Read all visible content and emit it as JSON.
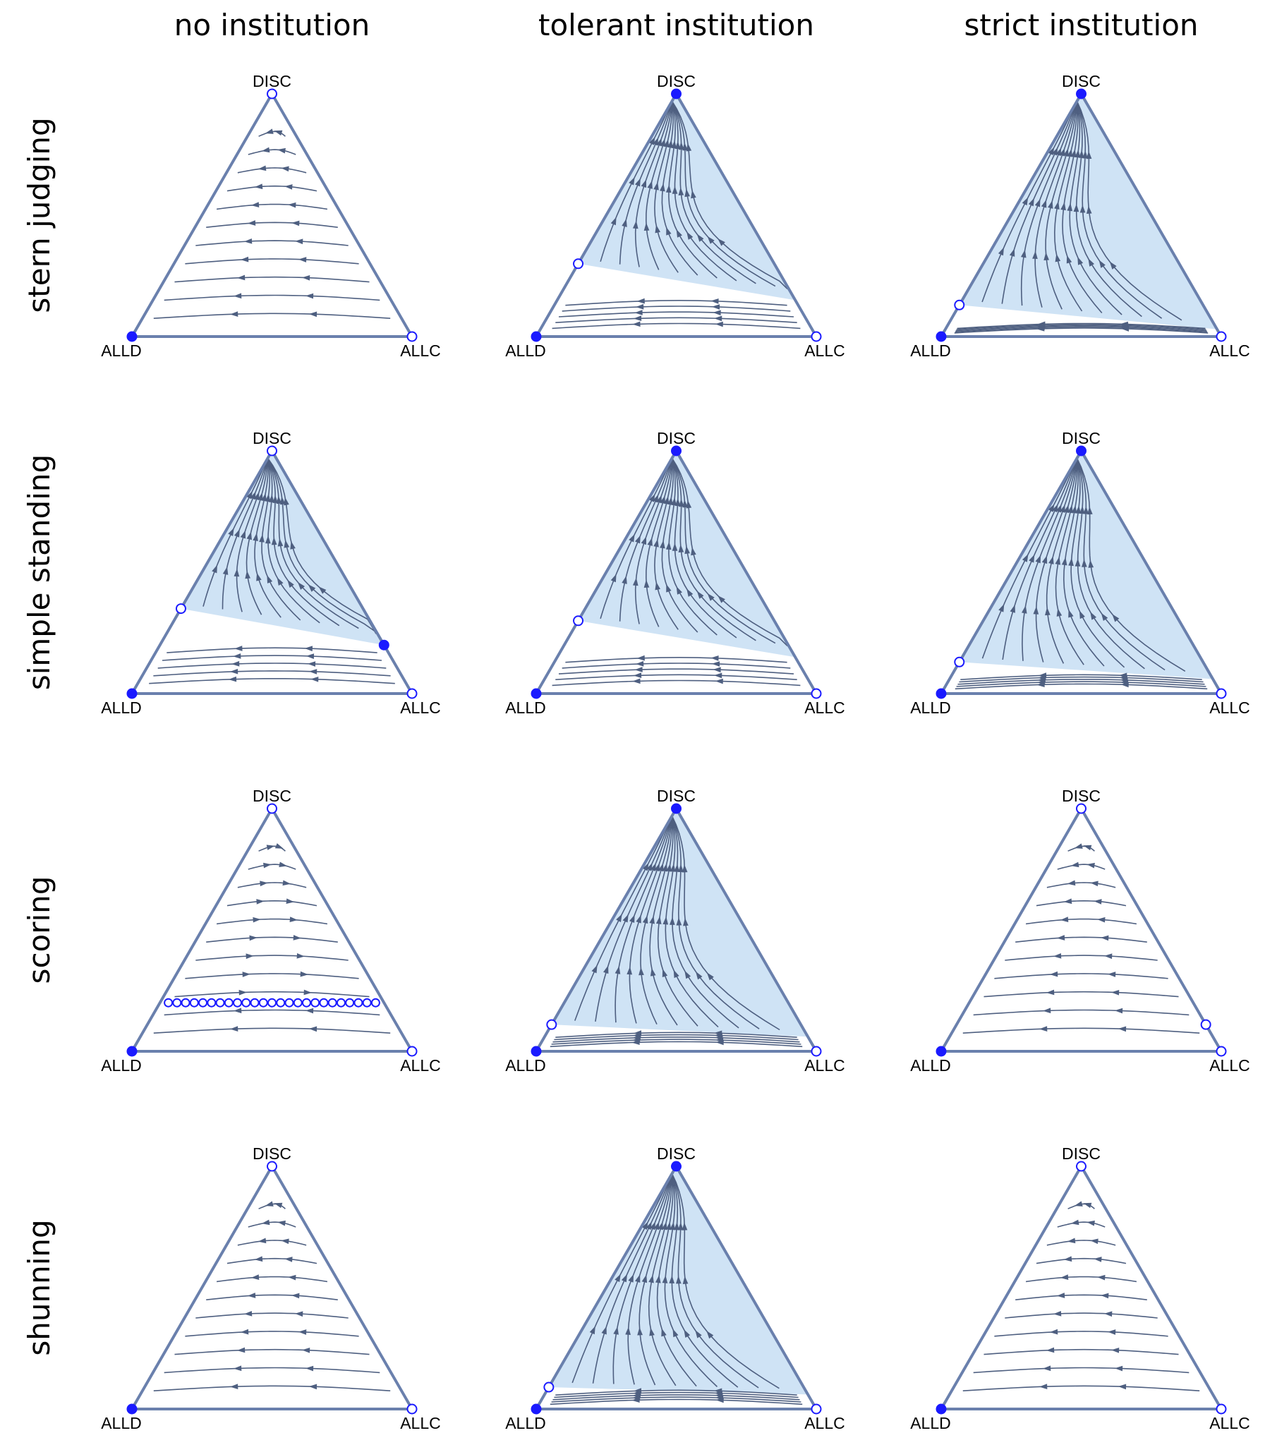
{
  "columns": [
    "no institution",
    "tolerant institution",
    "strict institution"
  ],
  "rows": [
    "stern judging",
    "simple standing",
    "scoring",
    "shunning"
  ],
  "vertex_labels": {
    "top": "DISC",
    "left": "ALLD",
    "right": "ALLC"
  },
  "colors": {
    "edge": "#6a80ad",
    "flow": "#4e5f80",
    "basin": "#cfe3f5",
    "fixed_point": "#1a1aff"
  },
  "panels": [
    {
      "row": "stern judging",
      "column": "no institution",
      "flow": "toward-alld",
      "basin": null,
      "points": [
        {
          "s": 1,
          "c": 0,
          "stable": false
        },
        {
          "s": 0,
          "c": 0,
          "stable": true
        },
        {
          "s": 0,
          "c": 1,
          "stable": false
        }
      ]
    },
    {
      "row": "stern judging",
      "column": "tolerant institution",
      "flow": "bistable",
      "basin": {
        "left": 0.3,
        "right": 0.15
      },
      "points": [
        {
          "s": 1,
          "c": 0,
          "stable": true
        },
        {
          "s": 0,
          "c": 0,
          "stable": true
        },
        {
          "s": 0,
          "c": 1,
          "stable": false
        },
        {
          "s": 0.3,
          "c": 0,
          "stable": false
        }
      ]
    },
    {
      "row": "stern judging",
      "column": "strict institution",
      "flow": "bistable",
      "basin": {
        "left": 0.13,
        "right": 0.03
      },
      "points": [
        {
          "s": 1,
          "c": 0,
          "stable": true
        },
        {
          "s": 0,
          "c": 0,
          "stable": true
        },
        {
          "s": 0,
          "c": 1,
          "stable": false
        },
        {
          "s": 0.13,
          "c": 0,
          "stable": false
        }
      ]
    },
    {
      "row": "simple standing",
      "column": "no institution",
      "flow": "bistable",
      "basin": {
        "left": 0.35,
        "right": 0.2
      },
      "points": [
        {
          "s": 1,
          "c": 0,
          "stable": false
        },
        {
          "s": 0,
          "c": 0,
          "stable": true
        },
        {
          "s": 0,
          "c": 1,
          "stable": false
        },
        {
          "s": 0.35,
          "c": 0,
          "stable": false
        },
        {
          "s": 0.2,
          "c": 0.8,
          "stable": true
        }
      ]
    },
    {
      "row": "simple standing",
      "column": "tolerant institution",
      "flow": "bistable",
      "basin": {
        "left": 0.3,
        "right": 0.15
      },
      "points": [
        {
          "s": 1,
          "c": 0,
          "stable": true
        },
        {
          "s": 0,
          "c": 0,
          "stable": true
        },
        {
          "s": 0,
          "c": 1,
          "stable": false
        },
        {
          "s": 0.3,
          "c": 0,
          "stable": false
        }
      ]
    },
    {
      "row": "simple standing",
      "column": "strict institution",
      "flow": "bistable",
      "basin": {
        "left": 0.13,
        "right": 0.06
      },
      "points": [
        {
          "s": 1,
          "c": 0,
          "stable": true
        },
        {
          "s": 0,
          "c": 0,
          "stable": true
        },
        {
          "s": 0,
          "c": 1,
          "stable": false
        },
        {
          "s": 0.13,
          "c": 0,
          "stable": false
        }
      ]
    },
    {
      "row": "scoring",
      "column": "no institution",
      "flow": "neutral-line",
      "basin": null,
      "neutral_line_s": 0.2,
      "points": [
        {
          "s": 1,
          "c": 0,
          "stable": false
        },
        {
          "s": 0,
          "c": 0,
          "stable": true
        },
        {
          "s": 0,
          "c": 1,
          "stable": false
        }
      ]
    },
    {
      "row": "scoring",
      "column": "tolerant institution",
      "flow": "bistable",
      "basin": {
        "left": 0.11,
        "right": 0.06
      },
      "points": [
        {
          "s": 1,
          "c": 0,
          "stable": true
        },
        {
          "s": 0,
          "c": 0,
          "stable": true
        },
        {
          "s": 0,
          "c": 1,
          "stable": false
        },
        {
          "s": 0.11,
          "c": 0,
          "stable": false
        }
      ]
    },
    {
      "row": "scoring",
      "column": "strict institution",
      "flow": "toward-alld",
      "basin": null,
      "points": [
        {
          "s": 1,
          "c": 0,
          "stable": false
        },
        {
          "s": 0,
          "c": 0,
          "stable": true
        },
        {
          "s": 0,
          "c": 1,
          "stable": false
        },
        {
          "s": 0.11,
          "c": 0.89,
          "stable": false
        }
      ]
    },
    {
      "row": "shunning",
      "column": "no institution",
      "flow": "toward-alld",
      "basin": null,
      "points": [
        {
          "s": 1,
          "c": 0,
          "stable": false
        },
        {
          "s": 0,
          "c": 0,
          "stable": true
        },
        {
          "s": 0,
          "c": 1,
          "stable": false
        }
      ]
    },
    {
      "row": "shunning",
      "column": "tolerant institution",
      "flow": "bistable",
      "basin": {
        "left": 0.09,
        "right": 0.06
      },
      "points": [
        {
          "s": 1,
          "c": 0,
          "stable": true
        },
        {
          "s": 0,
          "c": 0,
          "stable": true
        },
        {
          "s": 0,
          "c": 1,
          "stable": false
        },
        {
          "s": 0.09,
          "c": 0,
          "stable": false
        }
      ]
    },
    {
      "row": "shunning",
      "column": "strict institution",
      "flow": "toward-alld",
      "basin": null,
      "points": [
        {
          "s": 1,
          "c": 0,
          "stable": false
        },
        {
          "s": 0,
          "c": 0,
          "stable": true
        },
        {
          "s": 0,
          "c": 1,
          "stable": false
        }
      ]
    }
  ]
}
